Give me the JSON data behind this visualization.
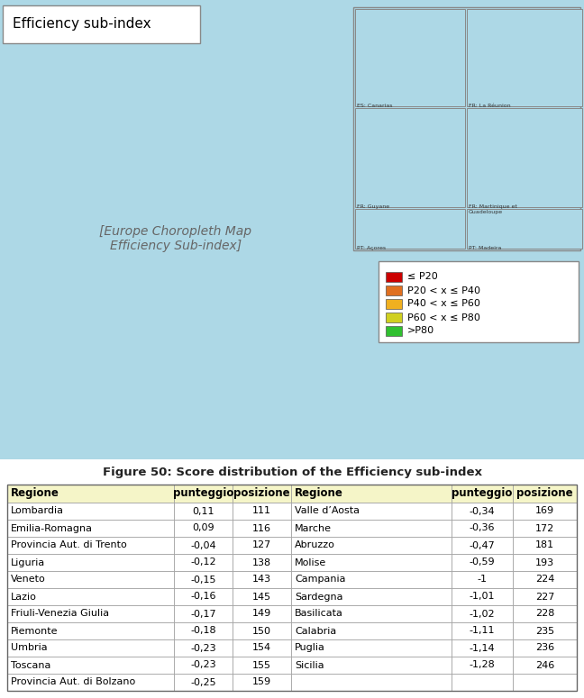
{
  "title_map": "Efficiency sub-index",
  "figure_caption": "Figure 50: Score distribution of the Efficiency sub-index",
  "legend_items": [
    {
      "label": "≤ P20",
      "color": "#CC0000"
    },
    {
      "label": "P20 < x ≤ P40",
      "color": "#E07020"
    },
    {
      "label": "P40 < x ≤ P60",
      "color": "#F0B020"
    },
    {
      "label": "P60 < x ≤ P80",
      "color": "#D0D020"
    },
    {
      "label": ">P80",
      "color": "#30C030"
    }
  ],
  "table_header": [
    "Regione",
    "punteggio",
    "posizione",
    "Regione",
    "punteggio",
    "posizione"
  ],
  "table_data_left": [
    [
      "Lombardia",
      "0,11",
      "111"
    ],
    [
      "Emilia-Romagna",
      "0,09",
      "116"
    ],
    [
      "Provincia Aut. di Trento",
      "-0,04",
      "127"
    ],
    [
      "Liguria",
      "-0,12",
      "138"
    ],
    [
      "Veneto",
      "-0,15",
      "143"
    ],
    [
      "Lazio",
      "-0,16",
      "145"
    ],
    [
      "Friuli-Venezia Giulia",
      "-0,17",
      "149"
    ],
    [
      "Piemonte",
      "-0,18",
      "150"
    ],
    [
      "Umbria",
      "-0,23",
      "154"
    ],
    [
      "Toscana",
      "-0,23",
      "155"
    ],
    [
      "Provincia Aut. di Bolzano",
      "-0,25",
      "159"
    ]
  ],
  "table_data_right": [
    [
      "Valle d’Aosta",
      "-0,34",
      "169"
    ],
    [
      "Marche",
      "-0,36",
      "172"
    ],
    [
      "Abruzzo",
      "-0,47",
      "181"
    ],
    [
      "Molise",
      "-0,59",
      "193"
    ],
    [
      "Campania",
      "-1",
      "224"
    ],
    [
      "Sardegna",
      "-1,01",
      "227"
    ],
    [
      "Basilicata",
      "-1,02",
      "228"
    ],
    [
      "Calabria",
      "-1,11",
      "235"
    ],
    [
      "Puglia",
      "-1,14",
      "236"
    ],
    [
      "Sicilia",
      "-1,28",
      "246"
    ],
    [
      "",
      "",
      ""
    ]
  ],
  "header_bg": "#F5F5C8",
  "border_color": "#999999",
  "map_bg": "#ADD8E6",
  "land_bg": "#B8A878"
}
